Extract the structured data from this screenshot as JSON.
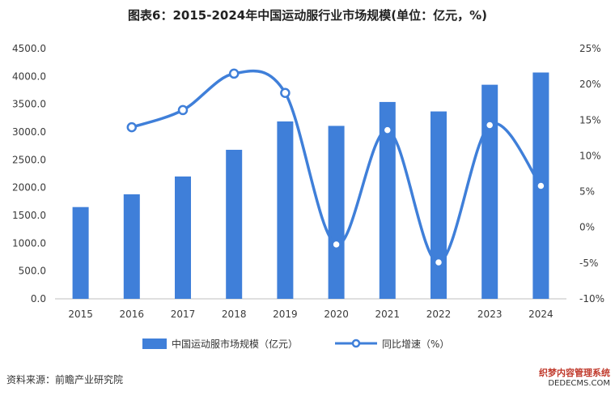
{
  "title": "图表6：2015-2024年中国运动服行业市场规模(单位：亿元，%)",
  "source": "资料来源：前瞻产业研究院",
  "watermark": {
    "line1": "织梦内容管理系统",
    "line2": "DEDECMS.COM"
  },
  "colors": {
    "bar": "#3f7fd9",
    "line": "#3f7fd9",
    "axis_text": "#3a3a3a",
    "grid": "#e6e6e6"
  },
  "chart_data": {
    "type": "bar+line",
    "categories": [
      "2015",
      "2016",
      "2017",
      "2018",
      "2019",
      "2020",
      "2021",
      "2022",
      "2023",
      "2024"
    ],
    "series": [
      {
        "name": "中国运动服市场规模（亿元）",
        "type": "bar",
        "axis": "left",
        "values": [
          1650,
          1880,
          2200,
          2680,
          3190,
          3110,
          3540,
          3370,
          3850,
          4070
        ]
      },
      {
        "name": "同比增速（%）",
        "type": "line",
        "axis": "right",
        "values": [
          null,
          14.0,
          16.4,
          21.5,
          18.8,
          -2.4,
          13.6,
          -4.9,
          14.3,
          5.8
        ]
      }
    ],
    "y_left": {
      "min": 0,
      "max": 4500,
      "ticks": [
        "0.0",
        "500.0",
        "1000.0",
        "1500.0",
        "2000.0",
        "2500.0",
        "3000.0",
        "3500.0",
        "4000.0",
        "4500.0"
      ]
    },
    "y_right": {
      "min": -10,
      "max": 25,
      "ticks": [
        "-10%",
        "-5%",
        "0%",
        "5%",
        "10%",
        "15%",
        "20%",
        "25%"
      ]
    },
    "legend_position": "bottom",
    "grid": false
  }
}
